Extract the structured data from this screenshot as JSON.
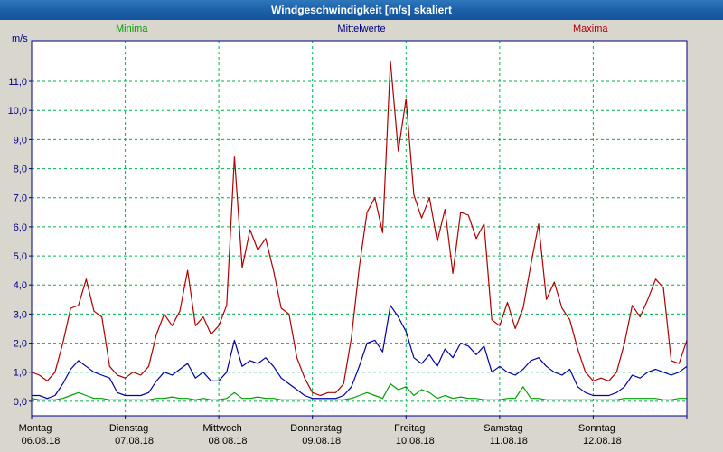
{
  "window": {
    "title": "Windgeschwindigkeit [m/s] skaliert"
  },
  "chart_data": {
    "type": "line",
    "title": "Windgeschwindigkeit [m/s] skaliert",
    "y_unit": "m/s",
    "ylim": [
      -0.5,
      12.4
    ],
    "ytick_step": 1.0,
    "ytick_labels": [
      "0,0",
      "1,0",
      "2,0",
      "3,0",
      "4,0",
      "5,0",
      "6,0",
      "7,0",
      "8,0",
      "9,0",
      "10,0",
      "11,0"
    ],
    "grid": true,
    "grid_color": "#00b050",
    "axis_color": "#000080",
    "frame_color": "#000080",
    "plot_bg": "#ffffff",
    "day_label_color": "#000000",
    "legend_position": "top",
    "points_per_day": 12,
    "x_days": [
      {
        "name": "Montag",
        "date": "06.08.18"
      },
      {
        "name": "Dienstag",
        "date": "07.08.18"
      },
      {
        "name": "Mittwoch",
        "date": "08.08.18"
      },
      {
        "name": "Donnerstag",
        "date": "09.08.18"
      },
      {
        "name": "Freitag",
        "date": "10.08.18"
      },
      {
        "name": "Samstag",
        "date": "11.08.18"
      },
      {
        "name": "Sonntag",
        "date": "12.08.18"
      }
    ],
    "series": [
      {
        "name": "Minima",
        "color": "#00a000",
        "values": [
          0.1,
          0.05,
          0.05,
          0.05,
          0.1,
          0.2,
          0.3,
          0.2,
          0.1,
          0.1,
          0.05,
          0.05,
          0.05,
          0.05,
          0.05,
          0.05,
          0.1,
          0.1,
          0.15,
          0.1,
          0.1,
          0.05,
          0.1,
          0.05,
          0.05,
          0.1,
          0.3,
          0.1,
          0.1,
          0.15,
          0.1,
          0.1,
          0.05,
          0.05,
          0.05,
          0.05,
          0.05,
          0.05,
          0.05,
          0.05,
          0.05,
          0.1,
          0.2,
          0.3,
          0.2,
          0.1,
          0.6,
          0.4,
          0.5,
          0.2,
          0.4,
          0.3,
          0.1,
          0.2,
          0.1,
          0.15,
          0.1,
          0.1,
          0.05,
          0.05,
          0.05,
          0.1,
          0.1,
          0.5,
          0.1,
          0.1,
          0.05,
          0.05,
          0.05,
          0.05,
          0.05,
          0.05,
          0.05,
          0.05,
          0.05,
          0.05,
          0.1,
          0.1,
          0.1,
          0.1,
          0.1,
          0.05,
          0.05,
          0.1,
          0.1
        ]
      },
      {
        "name": "Mittelwerte",
        "color": "#0000a0",
        "values": [
          0.2,
          0.2,
          0.1,
          0.2,
          0.6,
          1.1,
          1.4,
          1.2,
          1.0,
          0.9,
          0.8,
          0.3,
          0.2,
          0.2,
          0.2,
          0.3,
          0.7,
          1.0,
          0.9,
          1.1,
          1.3,
          0.8,
          1.0,
          0.7,
          0.7,
          1.0,
          2.1,
          1.2,
          1.4,
          1.3,
          1.5,
          1.2,
          0.8,
          0.6,
          0.4,
          0.2,
          0.1,
          0.1,
          0.1,
          0.1,
          0.2,
          0.5,
          1.2,
          2.0,
          2.1,
          1.7,
          3.3,
          2.9,
          2.4,
          1.5,
          1.3,
          1.6,
          1.2,
          1.8,
          1.5,
          2.0,
          1.9,
          1.6,
          1.9,
          1.0,
          1.2,
          1.0,
          0.9,
          1.1,
          1.4,
          1.5,
          1.2,
          1.0,
          0.9,
          1.1,
          0.5,
          0.3,
          0.2,
          0.2,
          0.2,
          0.3,
          0.5,
          0.9,
          0.8,
          1.0,
          1.1,
          1.0,
          0.9,
          1.0,
          1.2
        ]
      },
      {
        "name": "Maxima",
        "color": "#b00000",
        "values": [
          1.0,
          0.9,
          0.7,
          1.0,
          2.0,
          3.2,
          3.3,
          4.2,
          3.1,
          2.9,
          1.2,
          0.9,
          0.8,
          1.0,
          0.9,
          1.2,
          2.3,
          3.0,
          2.6,
          3.1,
          4.5,
          2.6,
          2.9,
          2.3,
          2.6,
          3.3,
          8.4,
          4.6,
          5.9,
          5.2,
          5.6,
          4.5,
          3.2,
          3.0,
          1.5,
          0.8,
          0.3,
          0.2,
          0.3,
          0.3,
          0.6,
          2.2,
          4.6,
          6.5,
          7.0,
          5.8,
          11.7,
          8.6,
          10.4,
          7.1,
          6.3,
          7.0,
          5.5,
          6.6,
          4.4,
          6.5,
          6.4,
          5.6,
          6.1,
          2.8,
          2.6,
          3.4,
          2.5,
          3.2,
          4.7,
          6.1,
          3.5,
          4.1,
          3.2,
          2.8,
          1.8,
          1.0,
          0.7,
          0.8,
          0.7,
          1.0,
          2.0,
          3.3,
          2.9,
          3.5,
          4.2,
          3.9,
          1.4,
          1.3,
          2.1
        ]
      }
    ]
  }
}
